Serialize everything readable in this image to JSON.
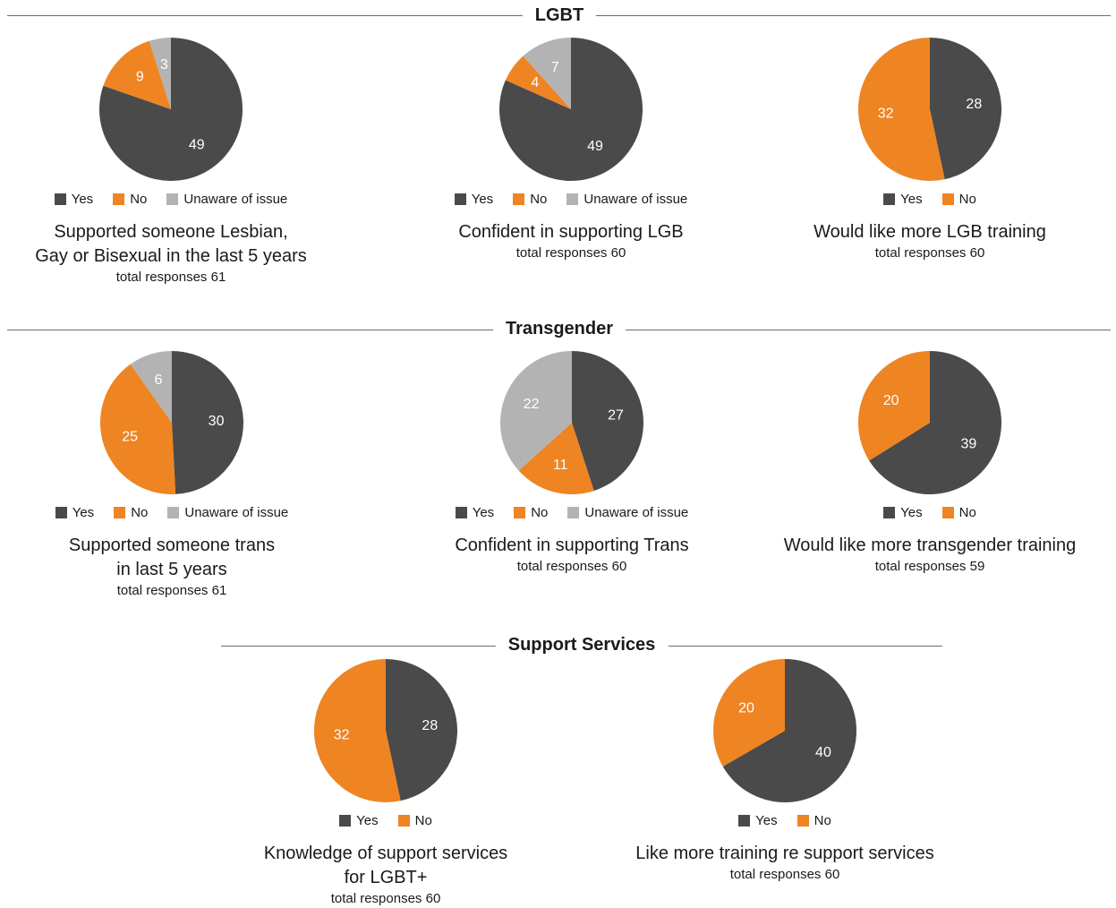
{
  "colors": {
    "yes": "#4a4a4a",
    "no": "#ee8422",
    "unaware": "#b3b3b3",
    "rule": "#6b6b6b"
  },
  "sections": {
    "lgbt": {
      "title": "LGBT"
    },
    "trans": {
      "title": "Transgender"
    },
    "support": {
      "title": "Support Services"
    }
  },
  "legend": {
    "yes": "Yes",
    "no": "No",
    "unaware": "Unaware of issue"
  },
  "chart_data": [
    {
      "type": "pie",
      "categories": [
        "Yes",
        "No",
        "Unaware of issue"
      ],
      "values": [
        49,
        9,
        3
      ],
      "title_lines": [
        "Supported someone Lesbian,",
        "Gay or Bisexual in the last 5 years"
      ],
      "subtitle": "total responses 61"
    },
    {
      "type": "pie",
      "categories": [
        "Yes",
        "No",
        "Unaware of issue"
      ],
      "values": [
        49,
        4,
        7
      ],
      "title_lines": [
        "Confident in supporting LGB"
      ],
      "subtitle": "total responses 60"
    },
    {
      "type": "pie",
      "categories": [
        "Yes",
        "No"
      ],
      "values": [
        28,
        32
      ],
      "title_lines": [
        "Would like more LGB training"
      ],
      "subtitle": "total responses 60"
    },
    {
      "type": "pie",
      "categories": [
        "Yes",
        "No",
        "Unaware of issue"
      ],
      "values": [
        30,
        25,
        6
      ],
      "title_lines": [
        "Supported someone trans",
        "in last 5 years"
      ],
      "subtitle": "total responses 61"
    },
    {
      "type": "pie",
      "categories": [
        "Yes",
        "No",
        "Unaware of issue"
      ],
      "values": [
        27,
        11,
        22
      ],
      "title_lines": [
        "Confident in supporting Trans"
      ],
      "subtitle": "total responses 60"
    },
    {
      "type": "pie",
      "categories": [
        "Yes",
        "No"
      ],
      "values": [
        39,
        20
      ],
      "title_lines": [
        "Would like more transgender training"
      ],
      "subtitle": "total responses 59"
    },
    {
      "type": "pie",
      "categories": [
        "Yes",
        "No"
      ],
      "values": [
        28,
        32
      ],
      "title_lines": [
        "Knowledge of support services",
        "for LGBT+"
      ],
      "subtitle": "total responses 60"
    },
    {
      "type": "pie",
      "categories": [
        "Yes",
        "No"
      ],
      "values": [
        40,
        20
      ],
      "title_lines": [
        "Like more training re support services"
      ],
      "subtitle": "total responses 60"
    }
  ]
}
